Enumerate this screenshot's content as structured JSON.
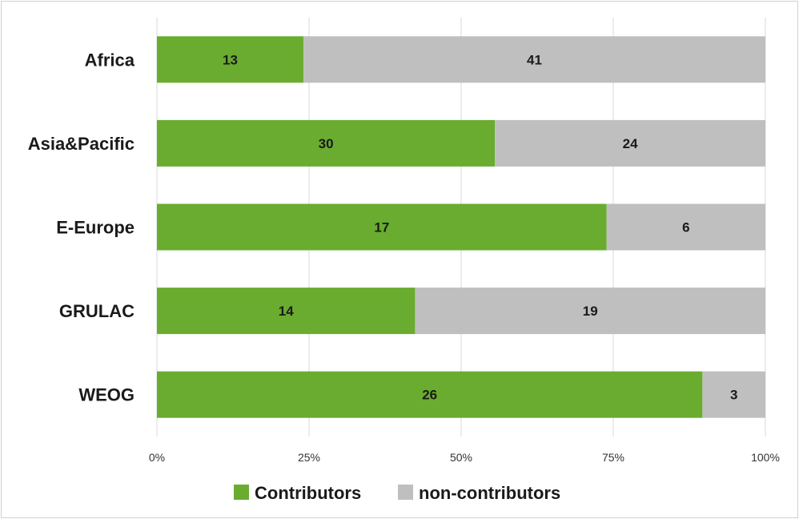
{
  "chart_data": {
    "type": "bar",
    "orientation": "horizontal",
    "stacking": "percent",
    "categories": [
      "Africa",
      "Asia&Pacific",
      "E-Europe",
      "GRULAC",
      "WEOG"
    ],
    "series": [
      {
        "name": "Contributors",
        "values": [
          13,
          30,
          17,
          14,
          26
        ],
        "color": "#6aac2f"
      },
      {
        "name": "non-contributors",
        "values": [
          41,
          24,
          6,
          19,
          3
        ],
        "color": "#bfbfbf"
      }
    ],
    "x_ticks": [
      "0%",
      "25%",
      "50%",
      "75%",
      "100%"
    ],
    "xlim": [
      0,
      100
    ],
    "grid": true,
    "legend_position": "bottom",
    "gridline_color": "#d9d9d9"
  }
}
